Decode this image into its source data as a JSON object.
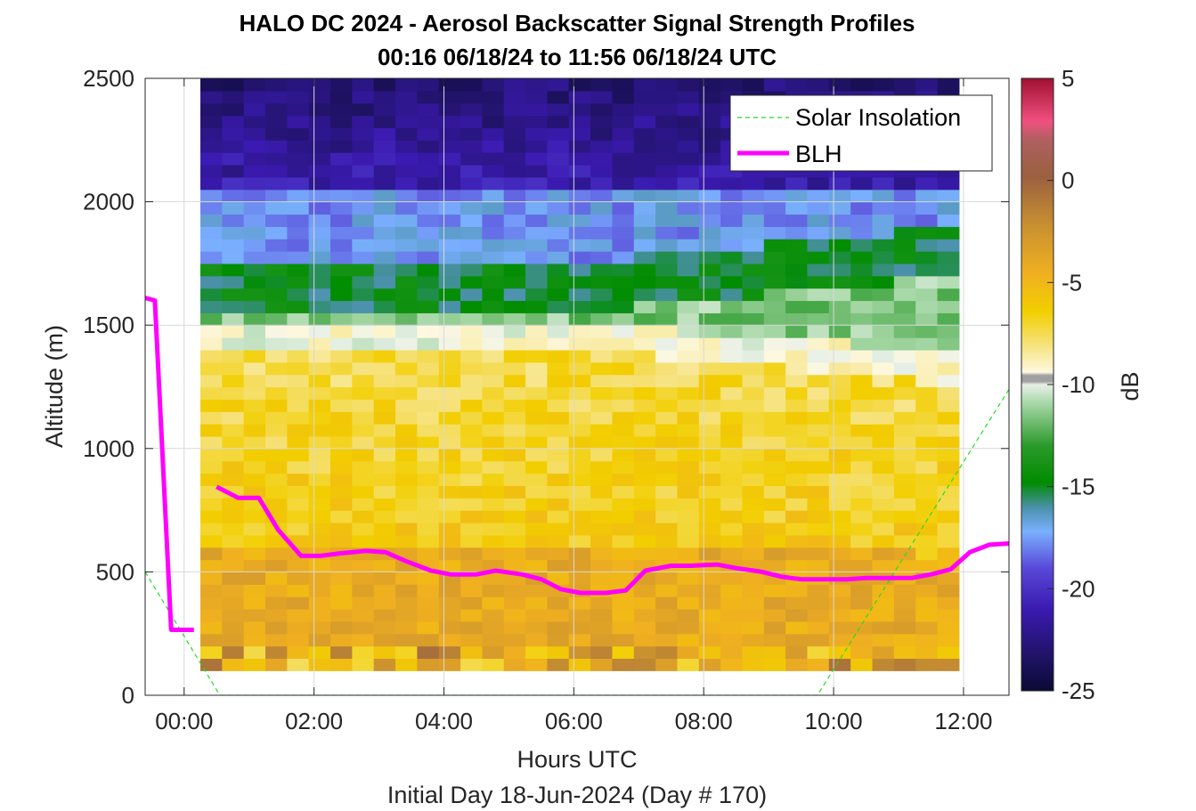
{
  "chart_data": {
    "type": "heatmap",
    "title": "HALO DC 2024 - Aerosol Backscatter Signal Strength Profiles",
    "subtitle": "00:16 06/18/24 to 11:56 06/18/24  UTC",
    "xlabel": "Hours UTC",
    "xlabel2": "Initial Day 18-Jun-2024 (Day # 170)",
    "ylabel": "Altitude (m)",
    "xlim": [
      -0.6,
      12.7
    ],
    "ylim": [
      0,
      2500
    ],
    "x_ticks": [
      0,
      2,
      4,
      6,
      8,
      10,
      12
    ],
    "x_tick_labels": [
      "00:00",
      "02:00",
      "04:00",
      "06:00",
      "08:00",
      "10:00",
      "12:00"
    ],
    "y_ticks": [
      0,
      500,
      1000,
      1500,
      2000,
      2500
    ],
    "y_tick_labels": [
      "0",
      "500",
      "1000",
      "1500",
      "2000",
      "2500"
    ],
    "grid": true,
    "colorbar": {
      "label": "dB",
      "limits": [
        -25,
        5
      ],
      "ticks": [
        -25,
        -20,
        -15,
        -10,
        -5,
        0,
        5
      ],
      "tick_labels": [
        "-25",
        "-20",
        "-15",
        "-10",
        "-5",
        "0",
        "5"
      ]
    },
    "heatmap": {
      "x_range_hours": [
        0.25,
        11.93
      ],
      "y_range_m": [
        100,
        2500
      ],
      "n_columns": 35,
      "n_rows": 48,
      "description_layers_db": [
        {
          "alt_from": 100,
          "alt_to": 800,
          "db": -6
        },
        {
          "alt_from": 800,
          "alt_to": 1350,
          "db": -7
        },
        {
          "alt_from": 1350,
          "alt_to": 1700,
          "db": -12
        },
        {
          "alt_from": 1700,
          "alt_to": 2000,
          "db": -16
        },
        {
          "alt_from": 2000,
          "alt_to": 2500,
          "db": -22
        }
      ]
    },
    "legend": {
      "placement": "top-right",
      "entries": [
        {
          "label": "Solar Insolation",
          "color": "#22dd22",
          "style": "dashed"
        },
        {
          "label": "BLH",
          "color": "#ff00ff",
          "style": "solid"
        }
      ]
    },
    "series": [
      {
        "name": "Solar Insolation",
        "color": "#22dd22",
        "x": [
          -0.6,
          0.55,
          9.75,
          12.7
        ],
        "y": [
          500,
          0,
          0,
          1240
        ]
      },
      {
        "name": "BLH",
        "color": "#ff00ff",
        "x": [
          -0.6,
          -0.45,
          -0.2,
          0.15,
          0.5,
          0.83,
          1.15,
          1.45,
          1.8,
          2.1,
          2.4,
          2.8,
          3.1,
          3.4,
          3.8,
          4.1,
          4.5,
          4.8,
          5.2,
          5.5,
          5.8,
          6.1,
          6.5,
          6.8,
          7.1,
          7.5,
          7.8,
          8.2,
          8.5,
          8.9,
          9.2,
          9.5,
          9.8,
          10.2,
          10.5,
          10.8,
          11.2,
          11.5,
          11.8,
          12.1,
          12.4,
          12.7
        ],
        "y": [
          1610,
          1600,
          265,
          265,
          845,
          800,
          800,
          670,
          565,
          565,
          575,
          585,
          580,
          545,
          505,
          490,
          490,
          505,
          490,
          470,
          430,
          415,
          415,
          425,
          505,
          525,
          525,
          530,
          515,
          500,
          480,
          470,
          470,
          470,
          475,
          475,
          475,
          490,
          510,
          580,
          610,
          615
        ]
      }
    ]
  }
}
